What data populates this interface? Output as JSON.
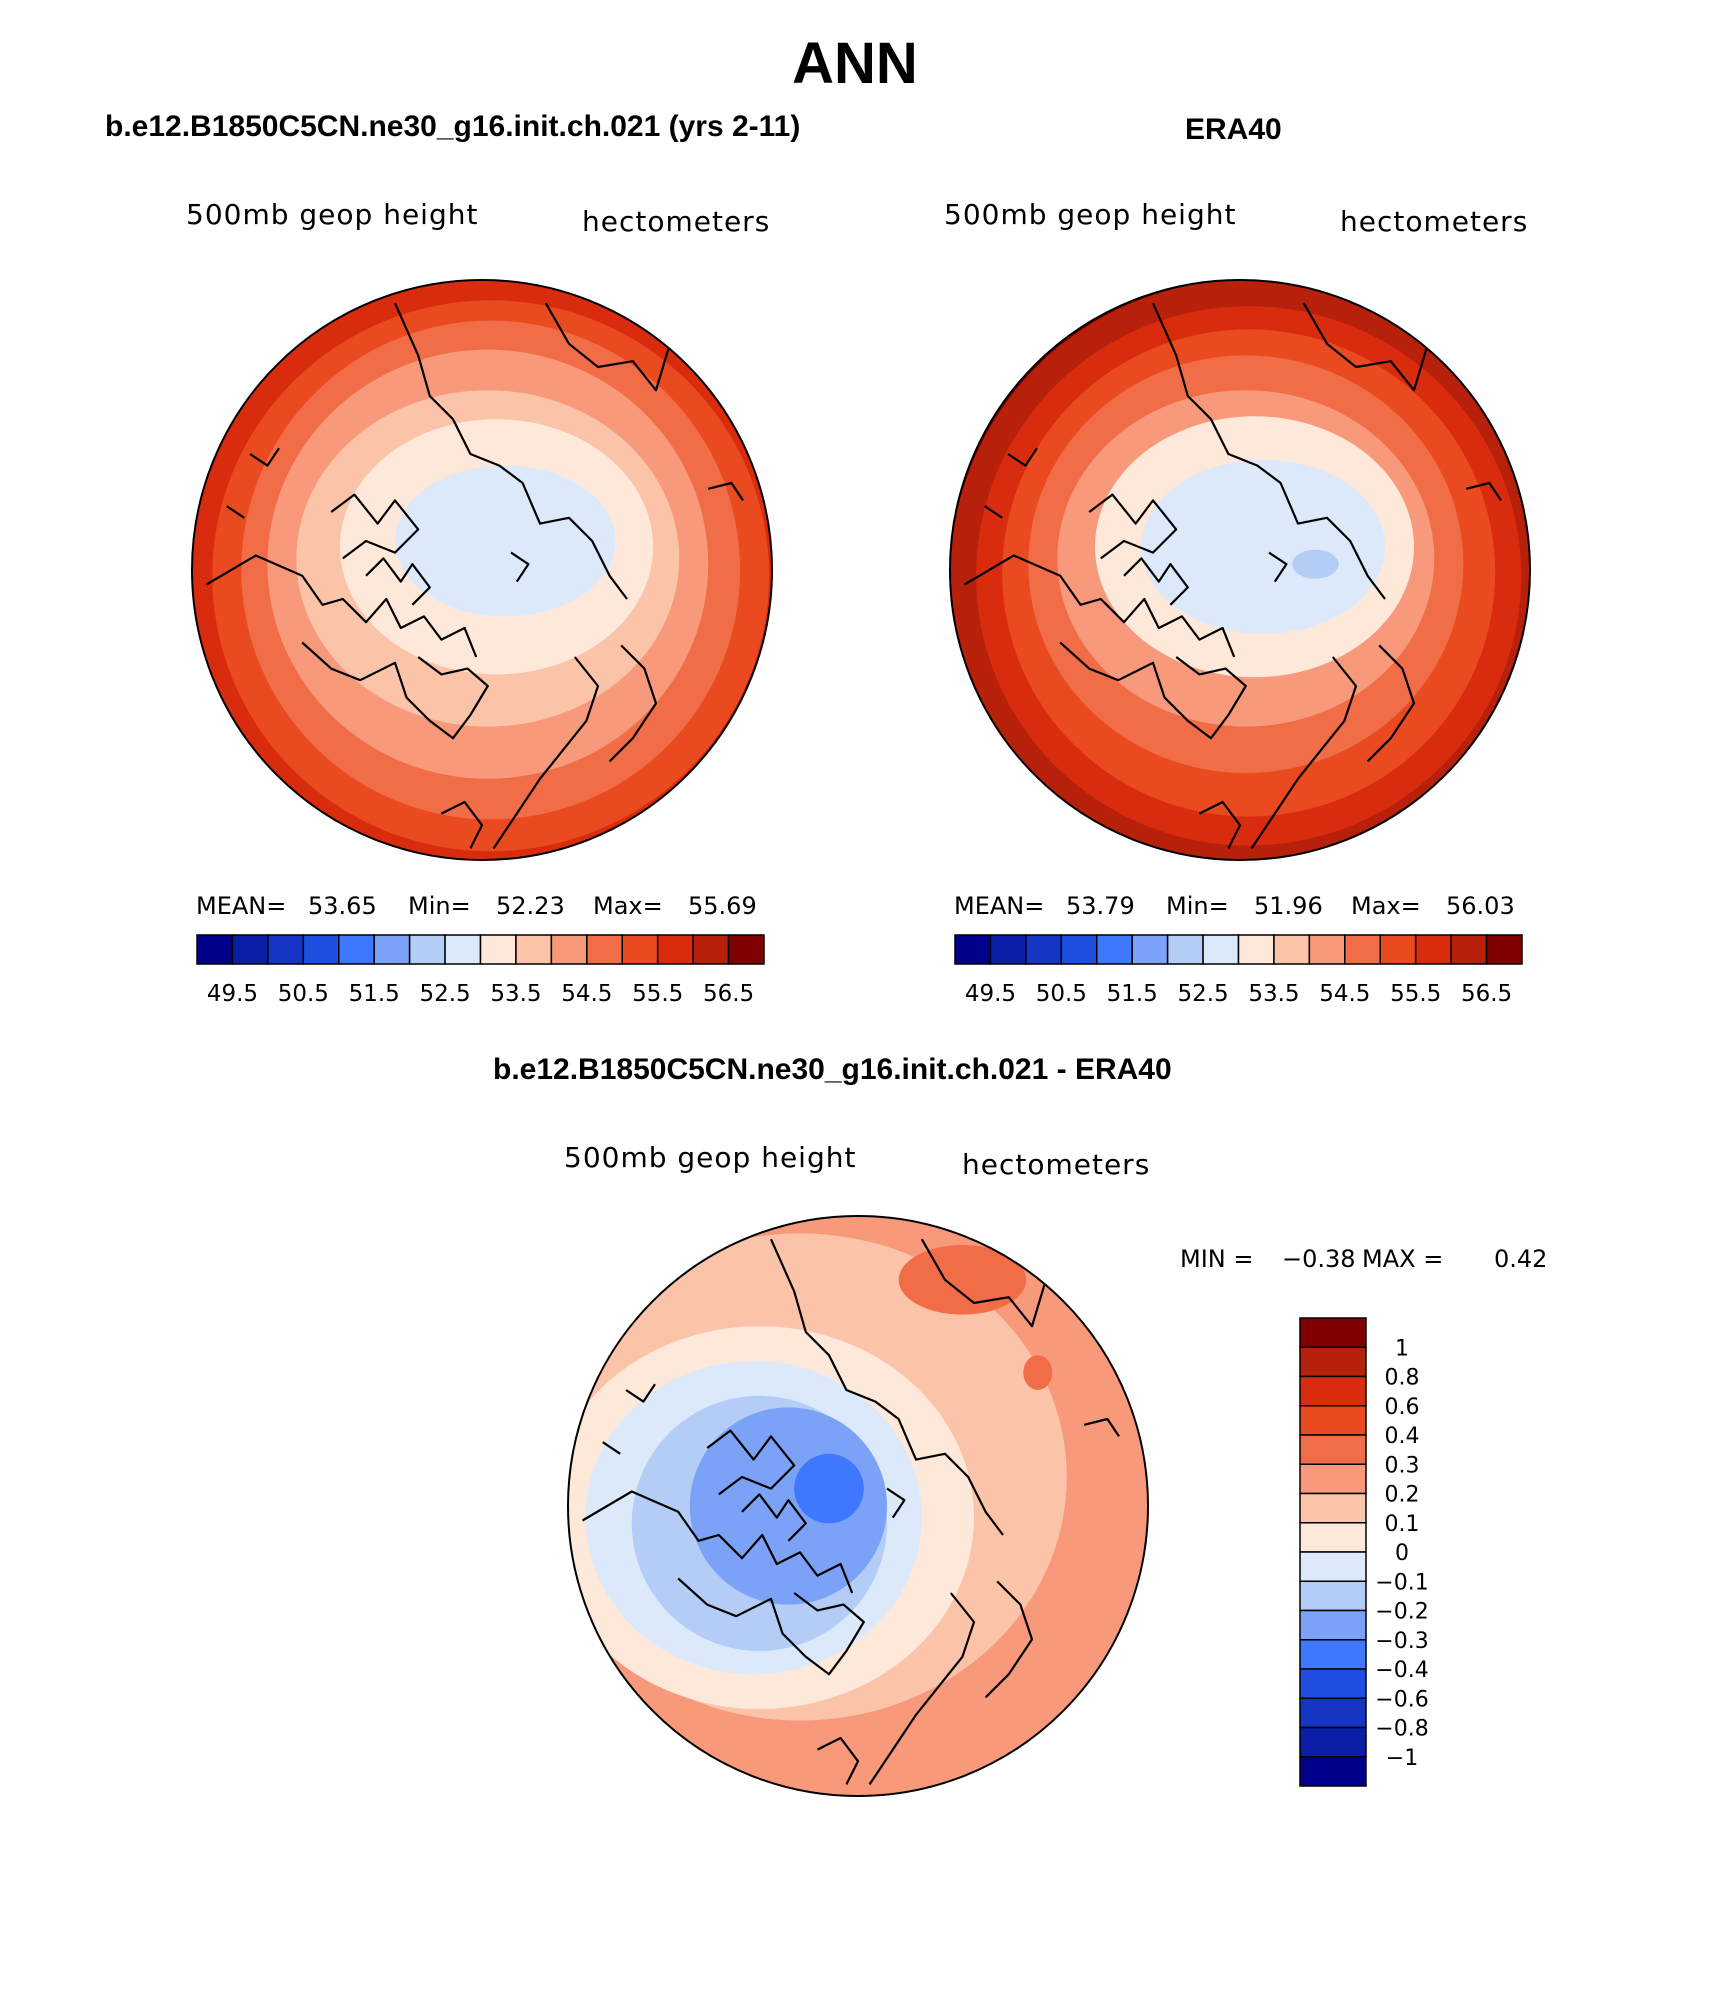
{
  "figure": {
    "title": "ANN"
  },
  "chart_data": [
    {
      "type": "contour-map",
      "projection": "north polar stereographic",
      "panel_title": "b.e12.B1850C5CN.ne30_g16.init.ch.021 (yrs 2-11)",
      "left_label": "500mb geop height",
      "right_label": "hectometers",
      "stats": {
        "mean_label": "MEAN=",
        "mean": "53.65",
        "min_label": "Min=",
        "min": "52.23",
        "max_label": "Max=",
        "max": "55.69"
      },
      "levels": [
        49.5,
        50,
        50.5,
        51,
        51.5,
        52,
        52.5,
        53,
        53.5,
        54,
        54.5,
        55,
        55.5,
        56,
        56.5
      ],
      "tick_labels": [
        "49.5",
        "50.5",
        "51.5",
        "52.5",
        "53.5",
        "54.5",
        "55.5",
        "56.5"
      ],
      "colors": [
        "#00008b",
        "#0a1ea6",
        "#1536c4",
        "#1f4fe0",
        "#3d78ff",
        "#7ba2f7",
        "#b4cdf6",
        "#dbe9fb",
        "#fde8d9",
        "#fbc4a9",
        "#f7997a",
        "#f16d47",
        "#ea4a20",
        "#d92c0e",
        "#b7200a",
        "#7e0000"
      ]
    },
    {
      "type": "contour-map",
      "projection": "north polar stereographic",
      "panel_title": "ERA40",
      "left_label": "500mb geop height",
      "right_label": "hectometers",
      "stats": {
        "mean_label": "MEAN=",
        "mean": "53.79",
        "min_label": "Min=",
        "min": "51.96",
        "max_label": "Max=",
        "max": "56.03"
      },
      "levels": [
        49.5,
        50,
        50.5,
        51,
        51.5,
        52,
        52.5,
        53,
        53.5,
        54,
        54.5,
        55,
        55.5,
        56,
        56.5
      ],
      "tick_labels": [
        "49.5",
        "50.5",
        "51.5",
        "52.5",
        "53.5",
        "54.5",
        "55.5",
        "56.5"
      ],
      "colors": [
        "#00008b",
        "#0a1ea6",
        "#1536c4",
        "#1f4fe0",
        "#3d78ff",
        "#7ba2f7",
        "#b4cdf6",
        "#dbe9fb",
        "#fde8d9",
        "#fbc4a9",
        "#f7997a",
        "#f16d47",
        "#ea4a20",
        "#d92c0e",
        "#b7200a",
        "#7e0000"
      ]
    },
    {
      "type": "contour-map",
      "projection": "north polar stereographic",
      "panel_title": "b.e12.B1850C5CN.ne30_g16.init.ch.021 - ERA40",
      "left_label": "500mb geop height",
      "right_label": "hectometers",
      "stats": {
        "min_label": "MIN =",
        "min": "−0.38",
        "max_label": "MAX =",
        "max": "0.42"
      },
      "levels": [
        -1,
        -0.8,
        -0.6,
        -0.4,
        -0.3,
        -0.2,
        -0.1,
        0,
        0.1,
        0.2,
        0.3,
        0.4,
        0.6,
        0.8,
        1
      ],
      "tick_labels": [
        "1",
        "0.8",
        "0.6",
        "0.4",
        "0.3",
        "0.2",
        "0.1",
        "0",
        "−0.1",
        "−0.2",
        "−0.3",
        "−0.4",
        "−0.6",
        "−0.8",
        "−1"
      ],
      "colors": [
        "#7e0000",
        "#b7200a",
        "#d92c0e",
        "#ea4a20",
        "#f16d47",
        "#f7997a",
        "#fbc4a9",
        "#fde8d9",
        "#dbe9fb",
        "#b4cdf6",
        "#7ba2f7",
        "#3d78ff",
        "#1f4fe0",
        "#1536c4",
        "#0a1ea6",
        "#00008b"
      ]
    }
  ]
}
